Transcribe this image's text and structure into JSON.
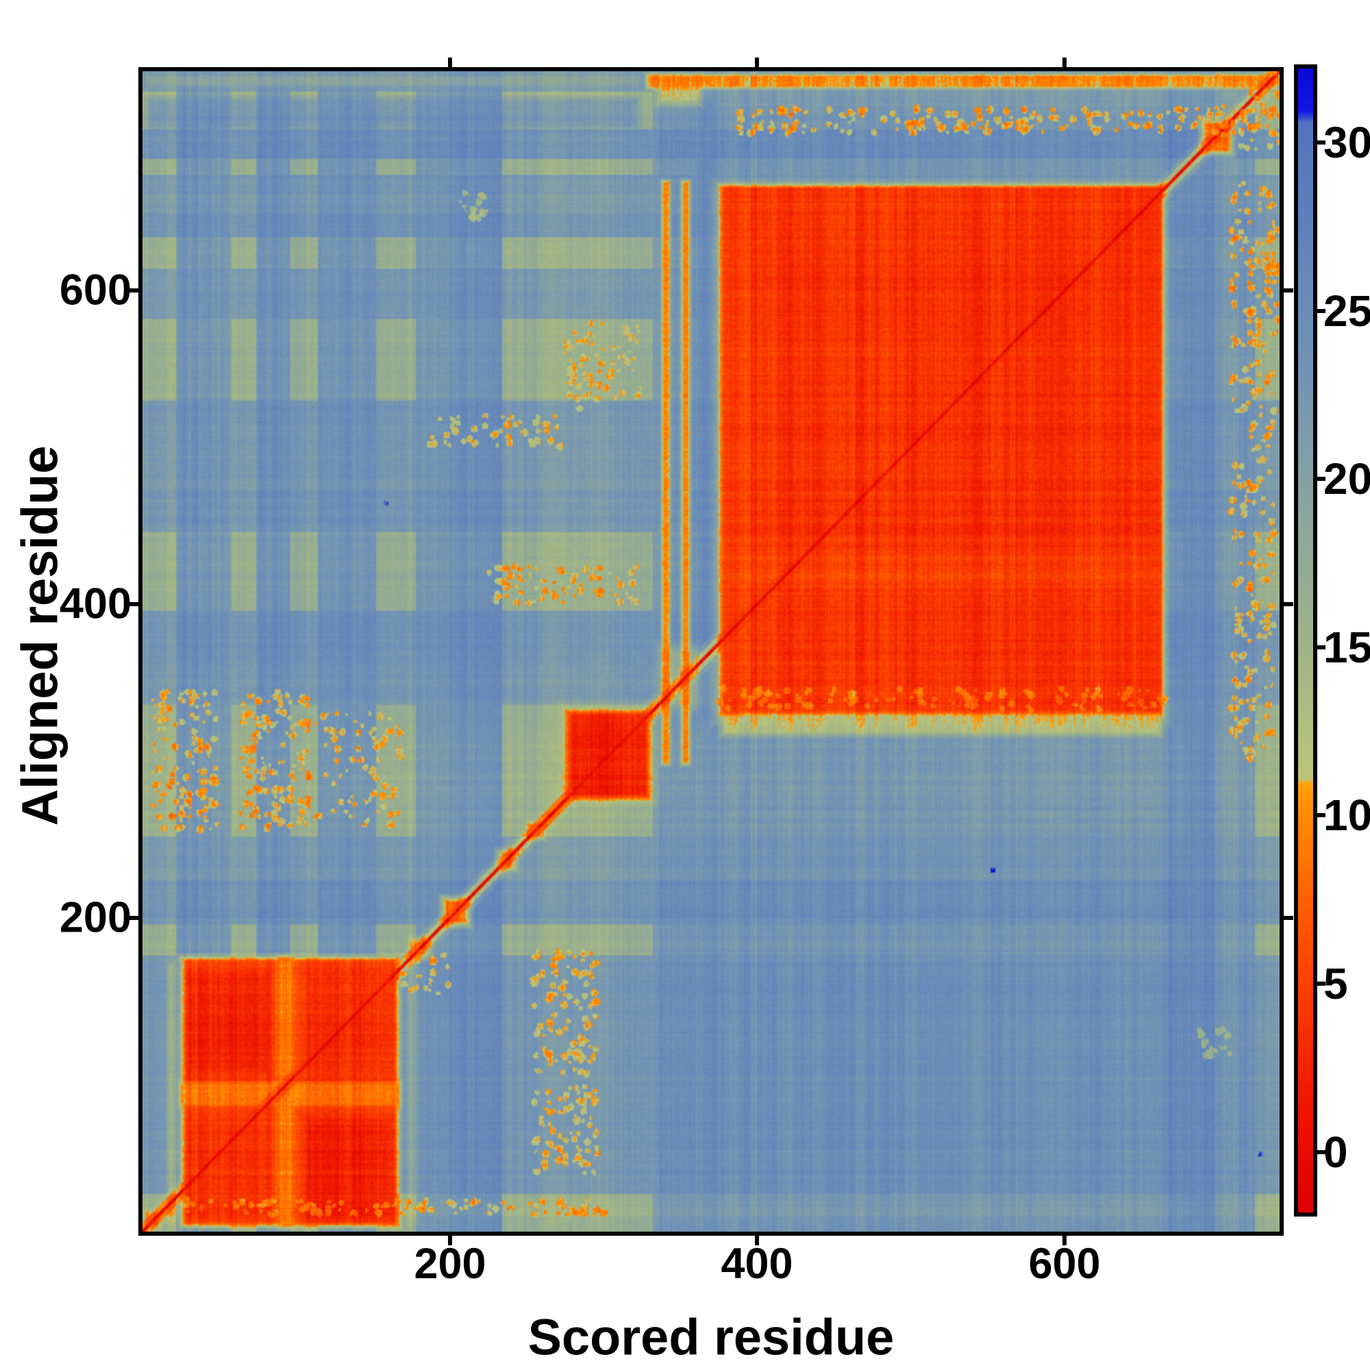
{
  "chart_data": {
    "type": "heatmap",
    "title": "",
    "xlabel": "Scored residue",
    "ylabel": "Aligned residue",
    "x_ticks": [
      200,
      400,
      600
    ],
    "y_ticks": [
      200,
      400,
      600
    ],
    "x_range": [
      1,
      740
    ],
    "y_range": [
      1,
      740
    ],
    "grid": false,
    "legend_position": "right-colorbar",
    "colorbar": {
      "ticks": [
        0,
        5,
        10,
        15,
        20,
        25,
        30
      ],
      "vmin": -1.8,
      "vmax": 32.2,
      "blue_cap_above": 30.9
    },
    "colormap_stops": [
      [
        -1.8,
        "#dd0000"
      ],
      [
        1,
        "#ee1200"
      ],
      [
        4,
        "#f93400"
      ],
      [
        7,
        "#ff5800"
      ],
      [
        9,
        "#ff7a00"
      ],
      [
        10.5,
        "#ff9404"
      ],
      [
        10.95,
        "#ffa30e"
      ],
      [
        11.08,
        "#bcc578"
      ],
      [
        13,
        "#adbc80"
      ],
      [
        15,
        "#a0b489"
      ],
      [
        17,
        "#94ac93"
      ],
      [
        19,
        "#8aa59e"
      ],
      [
        21,
        "#7f9daa"
      ],
      [
        23,
        "#7394b4"
      ],
      [
        25,
        "#6a8cb8"
      ],
      [
        27,
        "#6184bb"
      ],
      [
        29,
        "#597bbd"
      ],
      [
        30.6,
        "#5173be"
      ],
      [
        30.95,
        "#1216e8"
      ],
      [
        32.2,
        "#0a0ad6"
      ]
    ],
    "heatmap_spec": {
      "n": 740,
      "base": 24.2,
      "crossing_boost": {
        "threshold": 21.8,
        "amount": 4.5,
        "floor": 12.5
      },
      "col_stripes": [
        [
          0,
          10,
          21.5
        ],
        [
          10,
          22,
          20
        ],
        [
          22,
          44,
          25
        ],
        [
          44,
          58,
          22.5
        ],
        [
          58,
          74,
          20.5
        ],
        [
          74,
          96,
          25.5
        ],
        [
          96,
          114,
          21.5
        ],
        [
          114,
          152,
          26
        ],
        [
          152,
          178,
          21.5
        ],
        [
          178,
          204,
          24
        ],
        [
          204,
          234,
          26
        ],
        [
          234,
          256,
          21.5
        ],
        [
          256,
          298,
          19.5
        ],
        [
          298,
          332,
          20.5
        ],
        [
          366,
          374,
          26.5
        ],
        [
          668,
          698,
          26.4
        ],
        [
          698,
          714,
          22
        ],
        [
          714,
          724,
          24.5
        ],
        [
          724,
          740,
          20
        ]
      ],
      "row_stripes": [
        [
          0,
          10,
          21
        ],
        [
          10,
          24,
          19
        ],
        [
          24,
          78,
          24.5
        ],
        [
          98,
          176,
          24.5
        ],
        [
          176,
          196,
          21
        ],
        [
          196,
          224,
          25.5
        ],
        [
          224,
          252,
          22
        ],
        [
          252,
          278,
          20
        ],
        [
          278,
          310,
          19.5
        ],
        [
          310,
          336,
          21
        ],
        [
          336,
          364,
          23.5
        ],
        [
          364,
          396,
          25.5
        ],
        [
          396,
          424,
          21
        ],
        [
          424,
          446,
          20.5
        ],
        [
          446,
          474,
          24.5
        ],
        [
          474,
          502,
          22.5
        ],
        [
          502,
          530,
          24
        ],
        [
          530,
          582,
          20.5
        ],
        [
          582,
          614,
          23.5
        ],
        [
          614,
          634,
          20.5
        ],
        [
          634,
          650,
          25.8
        ],
        [
          650,
          662,
          22
        ],
        [
          662,
          674,
          24
        ],
        [
          674,
          684,
          20
        ],
        [
          684,
          703,
          26.3
        ],
        [
          703,
          718,
          21
        ],
        [
          718,
          727,
          18.5
        ]
      ],
      "rects": [
        [
          14,
          24,
          2,
          174,
          9.0,
          0.45,
          5
        ],
        [
          22,
          170,
          0,
          178,
          4.6,
          1,
          6
        ],
        [
          22,
          170,
          78,
          97,
          9.2,
          0.9,
          4
        ],
        [
          86,
          100,
          0,
          178,
          9.2,
          0.9,
          4
        ],
        [
          26,
          86,
          98,
          168,
          2.0,
          0.85,
          7
        ],
        [
          102,
          166,
          4,
          76,
          2.0,
          0.85,
          7
        ],
        [
          26,
          86,
          6,
          76,
          3.0,
          0.55,
          7
        ],
        [
          102,
          166,
          98,
          168,
          3.0,
          0.55,
          7
        ],
        [
          170,
          182,
          2,
          178,
          9.5,
          0.35,
          6
        ],
        [
          268,
          338,
          268,
          340,
          8.2,
          0.5,
          10
        ],
        [
          274,
          332,
          274,
          334,
          2.1,
          1,
          5
        ],
        [
          332,
          376,
          330,
          378,
          8.5,
          0.45,
          9
        ],
        [
          336,
          345,
          296,
          672,
          6.8,
          0.85,
          3
        ],
        [
          349,
          358,
          296,
          672,
          6.8,
          0.85,
          3
        ],
        [
          359,
          374,
          326,
          724,
          26.6,
          0.65,
          5
        ],
        [
          332,
          366,
          716,
          740,
          8.6,
          0.75,
          6
        ],
        [
          368,
          672,
          320,
          674,
          7.5,
          0.55,
          10
        ],
        [
          374,
          666,
          328,
          669,
          4.2,
          1,
          4
        ],
        [
          400,
          640,
          344,
          640,
          3.2,
          0.5,
          24
        ],
        [
          374,
          666,
          406,
          436,
          6.4,
          0.45,
          8
        ],
        [
          374,
          666,
          314,
          332,
          8.8,
          0.7,
          5
        ],
        [
          374,
          394,
          328,
          669,
          6.2,
          0.45,
          6
        ],
        [
          0,
          326,
          700,
          726,
          25.8,
          0.6,
          6
        ],
        [
          326,
          740,
          727,
          740,
          8.4,
          0.92,
          3
        ],
        [
          0,
          326,
          727,
          740,
          17.5,
          0.75,
          5
        ],
        [
          676,
          700,
          0,
          662,
          26.2,
          0.55,
          8
        ],
        [
          686,
          712,
          684,
          712,
          3.5,
          0.8,
          6
        ],
        [
          192,
          216,
          192,
          216,
          3.8,
          0.8,
          6
        ],
        [
          228,
          246,
          228,
          246,
          6.0,
          0.7,
          5
        ],
        [
          248,
          264,
          248,
          264,
          6.0,
          0.7,
          5
        ],
        [
          172,
          190,
          172,
          190,
          5.5,
          0.6,
          5
        ],
        [
          0,
          14,
          0,
          14,
          4.5,
          0.7,
          5
        ]
      ],
      "diagonal": {
        "core_w": 1.5,
        "core_v": 0.35,
        "halo_w": 5,
        "halo_v": 3.5,
        "halo_a": 0.5,
        "soft_w": 9,
        "soft_v": 7,
        "soft_a": 0.15
      },
      "speckles": [
        [
          254,
          296,
          34,
          92,
          9.5,
          0.3
        ],
        [
          254,
          296,
          100,
          178,
          9.5,
          0.3
        ],
        [
          6,
          48,
          256,
          344,
          9.5,
          0.32
        ],
        [
          62,
          108,
          256,
          344,
          9.5,
          0.32
        ],
        [
          112,
          168,
          258,
          330,
          10,
          0.18
        ],
        [
          272,
          326,
          524,
          580,
          10,
          0.22
        ],
        [
          186,
          272,
          500,
          520,
          10,
          0.25
        ],
        [
          224,
          322,
          400,
          424,
          9.5,
          0.3
        ],
        [
          384,
          740,
          700,
          716,
          9.3,
          0.33
        ],
        [
          708,
          736,
          300,
          560,
          9.5,
          0.22
        ],
        [
          708,
          740,
          560,
          668,
          9.3,
          0.3
        ],
        [
          20,
          300,
          10,
          20,
          9.5,
          0.35
        ],
        [
          374,
          666,
          332,
          346,
          9.2,
          0.25
        ],
        [
          700,
          740,
          690,
          740,
          9.8,
          0.18
        ],
        [
          206,
          224,
          644,
          662,
          13.5,
          0.5
        ],
        [
          686,
          708,
          110,
          130,
          15,
          0.5
        ],
        [
          168,
          200,
          150,
          176,
          9.8,
          0.25
        ]
      ],
      "dark_dots": [
        [
          727,
          49
        ],
        [
          158,
          464
        ],
        [
          553,
          230
        ]
      ],
      "noise": {
        "seed": 42,
        "col": 1.1,
        "col_coarse": 0.9,
        "row": 0.55,
        "row_coarse": 0.45,
        "cell": 0.9
      }
    },
    "layout": {
      "background": "#ffffff",
      "frame_color": "#000000",
      "tick_color": "#000000"
    }
  }
}
